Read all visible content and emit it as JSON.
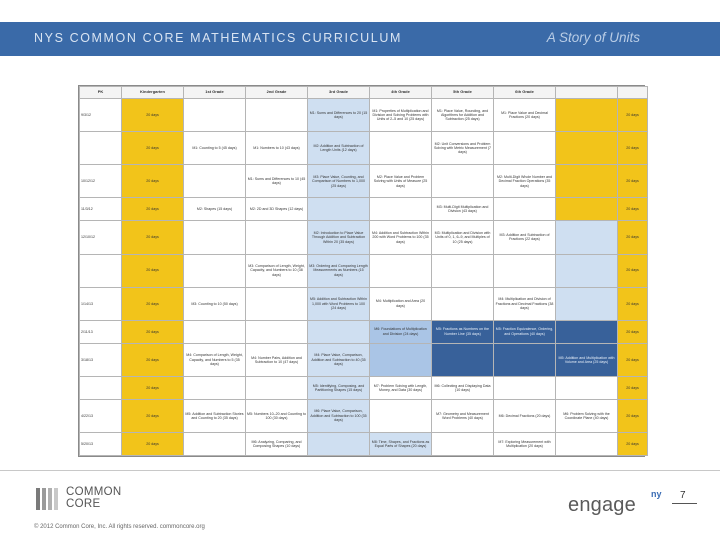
{
  "header": {
    "title": "NYS COMMON CORE MATHEMATICS CURRICULUM",
    "subtitle": "A Story of Units"
  },
  "table": {
    "columns": [
      "PK",
      "Kindergarten",
      "1st Grade",
      "2nd Grade",
      "3rd Grade",
      "4th Grade",
      "5th Grade",
      "6th Grade",
      "",
      ""
    ],
    "week_label": "20 days",
    "dates": [
      "9/3/12",
      "10/12/12",
      "11/3/12",
      "12/10/12",
      "1/14/13",
      "2/11/13",
      "3/18/13",
      "4/22/13",
      "5/20/13"
    ],
    "cells": {
      "g2_m1": "M1: Sums and Differences to 20 (15 days)",
      "g3_m1": "M1: Properties of Multiplication and Division and Solving Problems with Units of 2–5 and 10 (25 days)",
      "g4_m1": "M1: Place Value, Rounding, and Algorithms for Addition and Subtraction (25 days)",
      "g5_m1": "M1: Place Value and Decimal Fractions (20 days)",
      "g2_m2": "M2: Addition and Subtraction of Length Units (12 days)",
      "k_m1": "M1: Numbers to 10 (43 days)",
      "pk_m1": "M1: Counting to 5 (45 days)",
      "g1_m1": "M1: Sums and Differences to 10 (45 days)",
      "g2_m3": "M3: Place Value, Counting, and Comparison of Numbers to 1,000 (25 days)",
      "g3_m2": "M2: Place Value and Problem Solving with Units of Measure (25 days)",
      "g4_m2": "M2: Unit Conversions and Problem Solving with Metric Measurement (7 days)",
      "g5_m2": "M2: Multi-Digit Whole Number and Decimal Fraction Operations (35 days)",
      "k_m2": "M2: 2D and 3D Shapes (12 days)",
      "pk_m2": "M2: Shapes (15 days)",
      "g4_m3": "M3: Multi-Digit Multiplication and Division (43 days)",
      "g1_m2": "M2: Introduction to Place Value Through Addition and Subtraction Within 20 (35 days)",
      "g2_m4": "M4: Addition and Subtraction Within 200 with Word Problems to 100 (35 days)",
      "g3_m3": "M3: Multiplication and Division with Units of 0, 1, 6–9, and Multiples of 10 (25 days)",
      "g5_m3": "M3: Addition and Subtraction of Fractions (22 days)",
      "k_m3": "M3: Comparison of Length, Weight, Capacity, and Numbers to 10 (38 days)",
      "g1_m3": "M3: Ordering and Comparing Length Measurements as Numbers (15 days)",
      "pk_m3": "M3: Counting to 10 (50 days)",
      "g2_m5": "M5: Addition and Subtraction Within 1,000 with Word Problems to 100 (24 days)",
      "g3_m4": "M4: Multiplication and Area (20 days)",
      "g5_m4": "M4: Multiplication and Division of Fractions and Decimal Fractions (38 days)",
      "g4_m4": "M4: Angle Measure and Plane Figures (20 days)",
      "g3_m5": "M5: Fractions as Numbers on the Number Line (35 days)",
      "g4_m5": "M5: Fraction Equivalence, Ordering, and Operations (40 days)",
      "g2_m6": "M6: Foundations of Multiplication and Division (24 days)",
      "g1_m4": "M4: Place Value, Comparison, Addition and Subtraction to 40 (35 days)",
      "k_m4": "M4: Number Pairs, Addition and Subtraction to 10 (47 days)",
      "g5_m5": "M5: Addition and Multiplication with Volume and Area (25 days)",
      "pk_m4": "M4: Comparison of Length, Weight, Capacity, and Numbers to 5 (35 days)",
      "g2_m7": "M7: Problem Solving with Length, Money, and Data (30 days)",
      "g1_m5": "M5: Identifying, Composing, and Partitioning Shapes (15 days)",
      "g3_m6": "M6: Collecting and Displaying Data (10 days)",
      "g4_m6": "M6: Decimal Fractions (20 days)",
      "g3_m7": "M7: Geometry and Measurement Word Problems (40 days)",
      "g5_m6": "M6: Problem Solving with the Coordinate Plane (40 days)",
      "g4_m7": "M7: Exploring Measurement with Multiplication (20 days)",
      "k_m5": "M5: Numbers 10–20 and Counting to 100 (30 days)",
      "g1_m6": "M6: Place Value, Comparison, Addition and Subtraction to 100 (35 days)",
      "g2_m8": "M8: Time, Shapes, and Fractions as Equal Parts of Shapes (20 days)",
      "pk_m5": "M5: Addition and Subtraction Stories and Counting to 20 (35 days)",
      "g3_m3b": "M3: Multiplication and Division with Units of 0, 1, 6–9, and Multiples of 10 (25 days)",
      "k_m6": "M6: Analyzing, Comparing, and Composing Shapes (10 days)"
    }
  },
  "footer": {
    "logo_line1": "COMMON",
    "logo_line2": "CORE",
    "copyright": "© 2012 Common Core, Inc. All rights reserved. commoncore.org",
    "engage": "engage",
    "engage_sup": "ny",
    "page_number": "7"
  },
  "colors": {
    "header_bar": "#3a6aa8",
    "week_yellow": "#f2c41a",
    "light_blue": "#cfdff1",
    "medium_blue": "#aac5e6",
    "dark_blue": "#38619a"
  }
}
